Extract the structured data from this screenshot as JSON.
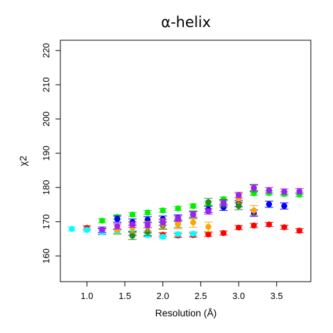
{
  "chart_data": {
    "type": "scatter",
    "title": "α-helix",
    "xlabel": "Resolution (Å)",
    "ylabel": "χ2",
    "xlim": [
      0.65,
      3.95
    ],
    "ylim": [
      152.5,
      223
    ],
    "xticks": [
      "1.0",
      "1.5",
      "2.0",
      "2.5",
      "3.0",
      "3.5"
    ],
    "yticks": [
      "160",
      "170",
      "180",
      "190",
      "200",
      "210",
      "220"
    ],
    "grid": false,
    "legend": "none",
    "series": [
      {
        "color": "#ff0000",
        "points": [
          [
            1.0,
            168.2
          ],
          [
            1.2,
            167.4
          ],
          [
            1.4,
            167.1
          ],
          [
            1.6,
            166.6
          ],
          [
            1.8,
            166.3
          ],
          [
            2.0,
            166.2
          ],
          [
            2.2,
            166.0
          ],
          [
            2.4,
            166.1
          ],
          [
            2.6,
            166.3
          ],
          [
            2.8,
            166.7
          ],
          [
            3.0,
            168.3
          ],
          [
            3.2,
            168.9
          ],
          [
            3.4,
            169.2
          ],
          [
            3.6,
            168.4
          ],
          [
            3.8,
            167.4
          ]
        ],
        "err": 0.6
      },
      {
        "color": "#00ee00",
        "points": [
          [
            1.2,
            170.3
          ],
          [
            1.4,
            171.4
          ],
          [
            1.6,
            172.1
          ],
          [
            1.8,
            172.7
          ],
          [
            2.0,
            173.3
          ],
          [
            2.2,
            173.9
          ],
          [
            2.4,
            174.6
          ],
          [
            2.6,
            175.4
          ],
          [
            2.8,
            176.6
          ],
          [
            3.0,
            177.6
          ],
          [
            3.2,
            178.3
          ],
          [
            3.4,
            178.4
          ],
          [
            3.6,
            178.1
          ],
          [
            3.8,
            177.9
          ]
        ],
        "err": 0.6
      },
      {
        "color": "#0000ff",
        "points": [
          [
            1.2,
            167.2
          ],
          [
            1.4,
            170.8
          ],
          [
            1.6,
            169.9
          ],
          [
            1.8,
            170.6
          ],
          [
            2.0,
            170.8
          ],
          [
            2.2,
            171.1
          ],
          [
            2.4,
            172.2
          ],
          [
            2.6,
            173.6
          ],
          [
            2.8,
            174.2
          ],
          [
            3.0,
            175.3
          ],
          [
            3.2,
            172.5
          ],
          [
            3.4,
            175.1
          ],
          [
            3.6,
            174.6
          ]
        ],
        "err": 0.9
      },
      {
        "color": "#00ffff",
        "points": [
          [
            0.8,
            167.9
          ],
          [
            1.0,
            167.6
          ],
          [
            1.2,
            167.0
          ],
          [
            1.4,
            167.0
          ],
          [
            1.6,
            166.8
          ],
          [
            1.8,
            166.1
          ],
          [
            2.0,
            165.6
          ],
          [
            2.2,
            166.4
          ],
          [
            2.4,
            166.5
          ]
        ],
        "err": 0.6
      },
      {
        "color": "#228b22",
        "points": [
          [
            1.6,
            165.9
          ],
          [
            1.8,
            167.1
          ],
          [
            2.0,
            168.9
          ],
          [
            2.2,
            169.4
          ],
          [
            2.4,
            172.0
          ],
          [
            2.6,
            175.7
          ],
          [
            2.8,
            175.4
          ],
          [
            3.0,
            174.6
          ],
          [
            3.2,
            179.8
          ]
        ],
        "err": 1.1
      },
      {
        "color": "#ffa500",
        "points": [
          [
            1.4,
            167.7
          ],
          [
            1.6,
            168.2
          ],
          [
            1.8,
            168.7
          ],
          [
            2.0,
            169.4
          ],
          [
            2.2,
            169.3
          ],
          [
            2.4,
            169.8
          ],
          [
            2.6,
            168.5
          ],
          [
            3.0,
            176.8
          ],
          [
            3.2,
            173.3
          ]
        ],
        "err": 1.4
      },
      {
        "color": "#a020f0",
        "points": [
          [
            1.2,
            167.7
          ],
          [
            1.4,
            168.7
          ],
          [
            1.6,
            169.2
          ],
          [
            1.8,
            169.0
          ],
          [
            2.0,
            169.8
          ],
          [
            2.2,
            170.9
          ],
          [
            2.4,
            172.1
          ],
          [
            2.6,
            173.0
          ],
          [
            2.8,
            175.5
          ],
          [
            3.0,
            177.8
          ],
          [
            3.2,
            179.9
          ],
          [
            3.4,
            179.2
          ],
          [
            3.6,
            178.8
          ],
          [
            3.8,
            178.9
          ]
        ],
        "err": 0.8
      }
    ]
  }
}
